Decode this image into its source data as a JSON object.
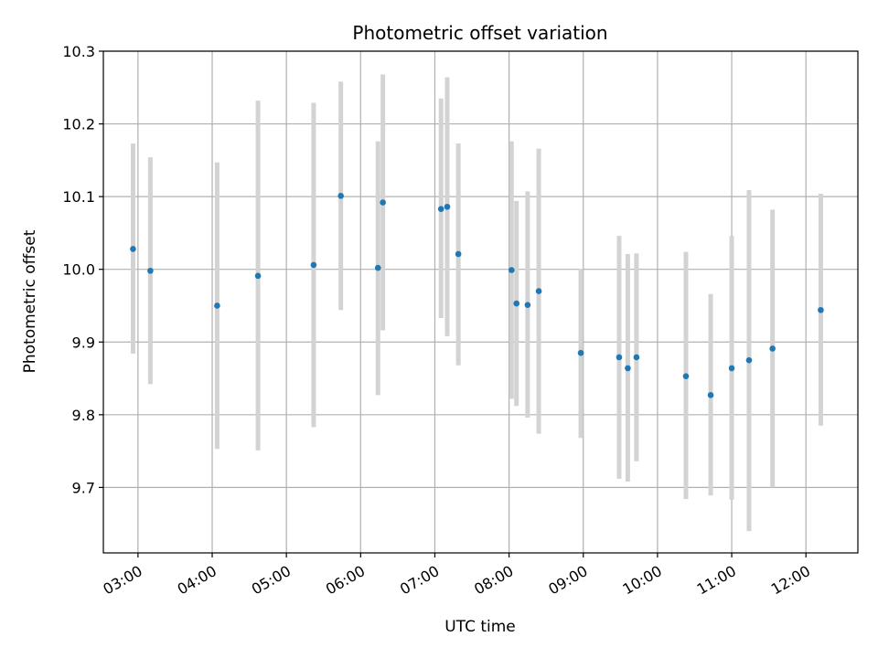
{
  "chart_data": {
    "type": "scatter",
    "title": "Photometric offset variation",
    "xlabel": "UTC time",
    "ylabel": "Photometric offset",
    "x_ticks": [
      "03:00",
      "04:00",
      "05:00",
      "06:00",
      "07:00",
      "08:00",
      "09:00",
      "10:00",
      "11:00",
      "12:00"
    ],
    "y_ticks": [
      "9.7",
      "9.8",
      "9.9",
      "10.0",
      "10.1",
      "10.2",
      "10.3"
    ],
    "xlim": [
      "02:32",
      "12:42"
    ],
    "ylim": [
      9.61,
      10.3
    ],
    "grid": true,
    "marker_color": "#1f77b4",
    "errorbar_color": "#d3d3d3",
    "points": [
      {
        "x": "02:56",
        "y": 10.028,
        "low": 9.884,
        "high": 10.173
      },
      {
        "x": "03:10",
        "y": 9.998,
        "low": 9.842,
        "high": 10.154
      },
      {
        "x": "04:04",
        "y": 9.95,
        "low": 9.753,
        "high": 10.147
      },
      {
        "x": "04:37",
        "y": 9.991,
        "low": 9.751,
        "high": 10.232
      },
      {
        "x": "05:22",
        "y": 10.006,
        "low": 9.783,
        "high": 10.229
      },
      {
        "x": "05:44",
        "y": 10.101,
        "low": 9.944,
        "high": 10.258
      },
      {
        "x": "06:14",
        "y": 10.002,
        "low": 9.827,
        "high": 10.176
      },
      {
        "x": "06:18",
        "y": 10.092,
        "low": 9.916,
        "high": 10.268
      },
      {
        "x": "07:05",
        "y": 10.083,
        "low": 9.933,
        "high": 10.235
      },
      {
        "x": "07:10",
        "y": 10.086,
        "low": 9.908,
        "high": 10.264
      },
      {
        "x": "07:19",
        "y": 10.021,
        "low": 9.868,
        "high": 10.173
      },
      {
        "x": "08:02",
        "y": 9.999,
        "low": 9.822,
        "high": 10.176
      },
      {
        "x": "08:06",
        "y": 9.953,
        "low": 9.812,
        "high": 10.094
      },
      {
        "x": "08:15",
        "y": 9.951,
        "low": 9.796,
        "high": 10.107
      },
      {
        "x": "08:24",
        "y": 9.97,
        "low": 9.774,
        "high": 10.166
      },
      {
        "x": "08:58",
        "y": 9.885,
        "low": 9.768,
        "high": 10.001
      },
      {
        "x": "09:29",
        "y": 9.879,
        "low": 9.712,
        "high": 10.046
      },
      {
        "x": "09:36",
        "y": 9.864,
        "low": 9.708,
        "high": 10.021
      },
      {
        "x": "09:43",
        "y": 9.879,
        "low": 9.736,
        "high": 10.022
      },
      {
        "x": "10:23",
        "y": 9.853,
        "low": 9.684,
        "high": 10.024
      },
      {
        "x": "10:43",
        "y": 9.827,
        "low": 9.689,
        "high": 9.966
      },
      {
        "x": "11:00",
        "y": 9.864,
        "low": 9.683,
        "high": 10.046
      },
      {
        "x": "11:14",
        "y": 9.875,
        "low": 9.64,
        "high": 10.109
      },
      {
        "x": "11:33",
        "y": 9.891,
        "low": 9.7,
        "high": 10.082
      },
      {
        "x": "12:12",
        "y": 9.944,
        "low": 9.785,
        "high": 10.104
      }
    ]
  }
}
